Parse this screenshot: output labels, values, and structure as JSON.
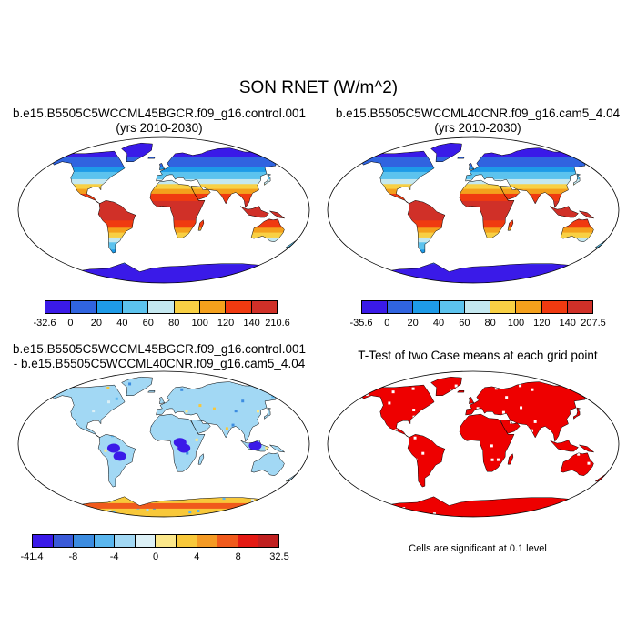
{
  "title": "SON RNET (W/m^2)",
  "panels": [
    {
      "title_lines": [
        "b.e15.B5505C5WCCML45BGCR.f09_g16.control.001",
        "(yrs 2010-2030)"
      ],
      "colorbar": {
        "labels": [
          "-32.6",
          "0",
          "20",
          "40",
          "60",
          "80",
          "100",
          "120",
          "140",
          "210.6"
        ],
        "colors": [
          "#3a1ae8",
          "#3064e0",
          "#1e9be8",
          "#5cc3ee",
          "#c4e8f0",
          "#f8d044",
          "#f4a01c",
          "#f03a10",
          "#d03028"
        ]
      }
    },
    {
      "title_lines": [
        "b.e15.B5505C5WCCML40CNR.f09_g16.cam5_4.04",
        "(yrs 2010-2030)"
      ],
      "colorbar": {
        "labels": [
          "-35.6",
          "0",
          "20",
          "40",
          "60",
          "80",
          "100",
          "120",
          "140",
          "207.5"
        ],
        "colors": [
          "#3a1ae8",
          "#3064e0",
          "#1e9be8",
          "#5cc3ee",
          "#c4e8f0",
          "#f8d044",
          "#f4a01c",
          "#f03a10",
          "#d03028"
        ]
      }
    },
    {
      "title_lines": [
        "b.e15.B5505C5WCCML45BGCR.f09_g16.control.001",
        "- b.e15.B5505C5WCCML40CNR.f09_g16.cam5_4.04"
      ],
      "colorbar": {
        "labels": [
          "-41.4",
          "-8",
          "-4",
          "0",
          "4",
          "8",
          "32.5"
        ],
        "colors": [
          "#3a1ae8",
          "#3a5ad8",
          "#3c8ce0",
          "#5ab6ee",
          "#a2d8f4",
          "#dcf0f6",
          "#fbe78a",
          "#f8c83a",
          "#f49a24",
          "#f05a1c",
          "#e41a14",
          "#c02020"
        ]
      }
    },
    {
      "title_lines": [
        "T-Test of two Case means at each grid point"
      ],
      "note": "Cells are significant at 0.1 level"
    }
  ]
}
